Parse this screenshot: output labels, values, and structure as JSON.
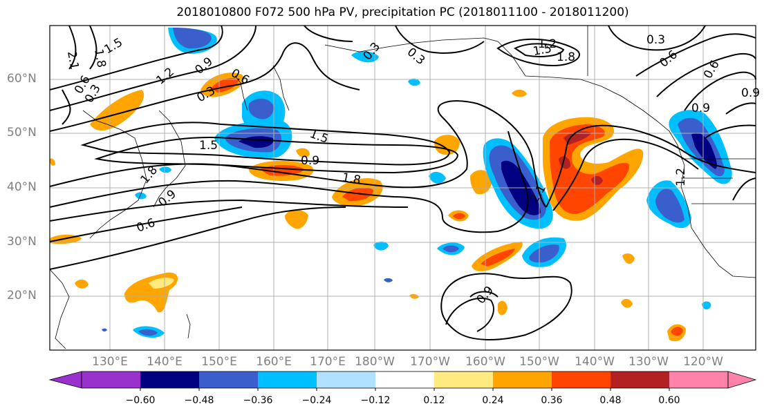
{
  "title": "2018010800 F072 500 hPa PV, precipitation PC (2018011100 - 2018011200)",
  "lat_labels": [
    "60°N",
    "50°N",
    "40°N",
    "30°N",
    "20°N"
  ],
  "lon_labels": [
    "130°E",
    "140°E",
    "150°E",
    "160°E",
    "170°E",
    "180°W",
    "170°W",
    "160°W",
    "150°W",
    "140°W",
    "130°W",
    "120°W"
  ],
  "colorbar": {
    "tick_labels": [
      "−0.60",
      "−0.48",
      "−0.36",
      "−0.24",
      "−0.12",
      "0.12",
      "0.24",
      "0.36",
      "0.48",
      "0.60"
    ],
    "colors": [
      "#9932cc",
      "#000080",
      "#3a5fcd",
      "#00bfff",
      "#b0e2ff",
      "#ffffff",
      "#ffea80",
      "#ffa500",
      "#ff4500",
      "#b22222",
      "#ff82ab"
    ]
  },
  "contour_labels": [
    "2.1",
    "1.8",
    "1.5",
    "1.2",
    "0.9",
    "0.6",
    "0.3",
    "0.3",
    "1.5",
    "0.9",
    "0.6",
    "1.8",
    "1.5",
    "0.9",
    "1.8",
    "2.1",
    "1.2",
    "1.5",
    "1.8",
    "0.9",
    "0.6",
    "0.3",
    "0.3",
    "1.2",
    "0.6",
    "0.3",
    "0.6",
    "0.9",
    "0.9"
  ]
}
